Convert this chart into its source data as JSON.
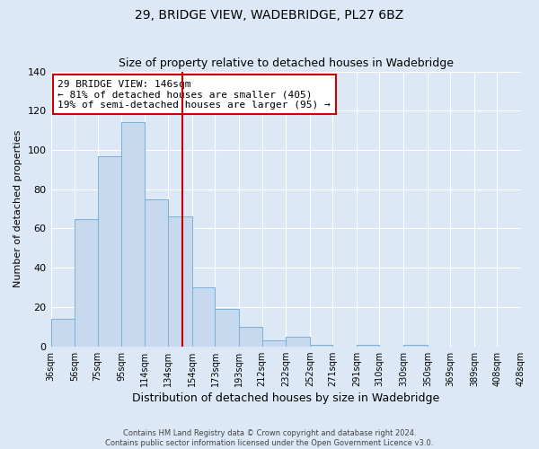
{
  "title": "29, BRIDGE VIEW, WADEBRIDGE, PL27 6BZ",
  "subtitle": "Size of property relative to detached houses in Wadebridge",
  "xlabel": "Distribution of detached houses by size in Wadebridge",
  "ylabel": "Number of detached properties",
  "bar_values": [
    14,
    65,
    97,
    114,
    75,
    66,
    30,
    19,
    10,
    3,
    5,
    1,
    0,
    1,
    0,
    1
  ],
  "bin_edges": [
    36,
    56,
    75,
    95,
    114,
    134,
    154,
    173,
    193,
    212,
    232,
    252,
    271,
    291,
    310,
    330,
    350,
    369,
    389,
    408,
    428
  ],
  "tick_labels": [
    "36sqm",
    "56sqm",
    "75sqm",
    "95sqm",
    "114sqm",
    "134sqm",
    "154sqm",
    "173sqm",
    "193sqm",
    "212sqm",
    "232sqm",
    "252sqm",
    "271sqm",
    "291sqm",
    "310sqm",
    "330sqm",
    "350sqm",
    "369sqm",
    "389sqm",
    "408sqm",
    "428sqm"
  ],
  "bar_color": "#c6d9ee",
  "bar_edge_color": "#7aafd4",
  "vline_x": 146,
  "vline_color": "#cc0000",
  "annotation_line1": "29 BRIDGE VIEW: 146sqm",
  "annotation_line2": "← 81% of detached houses are smaller (405)",
  "annotation_line3": "19% of semi-detached houses are larger (95) →",
  "annotation_box_color": "#ffffff",
  "annotation_box_edge": "#cc0000",
  "ylim": [
    0,
    140
  ],
  "yticks": [
    0,
    20,
    40,
    60,
    80,
    100,
    120,
    140
  ],
  "footer1": "Contains HM Land Registry data © Crown copyright and database right 2024.",
  "footer2": "Contains public sector information licensed under the Open Government Licence v3.0.",
  "bg_color": "#dce8f5",
  "plot_bg_color": "#dce8f5",
  "grid_color": "#ffffff",
  "title_fontsize": 10,
  "subtitle_fontsize": 9,
  "xlabel_fontsize": 9,
  "ylabel_fontsize": 8,
  "tick_fontsize": 7,
  "annotation_fontsize": 8,
  "footer_fontsize": 6
}
